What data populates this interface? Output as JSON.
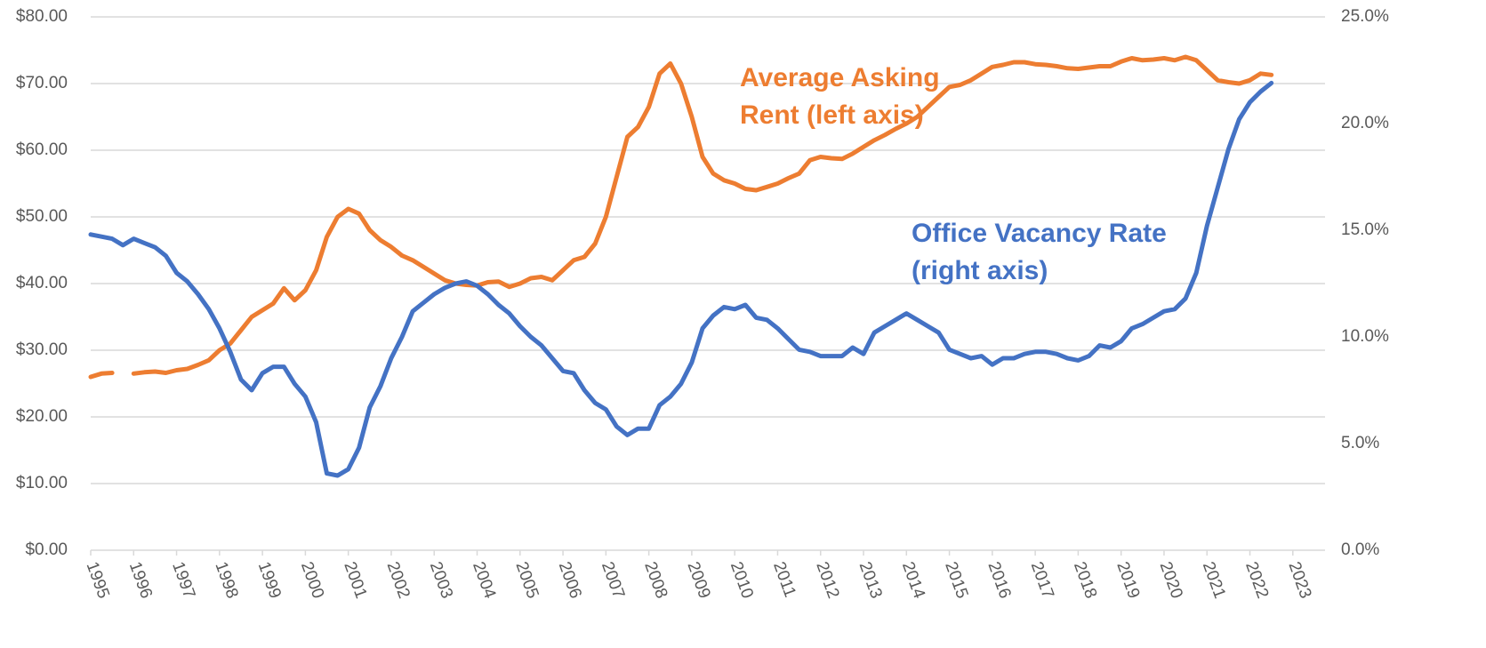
{
  "chart_data": {
    "type": "line",
    "x": [
      1995,
      1995.25,
      1995.5,
      1995.75,
      1996,
      1996.25,
      1996.5,
      1996.75,
      1997,
      1997.25,
      1997.5,
      1997.75,
      1998,
      1998.25,
      1998.5,
      1998.75,
      1999,
      1999.25,
      1999.5,
      1999.75,
      2000,
      2000.25,
      2000.5,
      2000.75,
      2001,
      2001.25,
      2001.5,
      2001.75,
      2002,
      2002.25,
      2002.5,
      2002.75,
      2003,
      2003.25,
      2003.5,
      2003.75,
      2004,
      2004.25,
      2004.5,
      2004.75,
      2005,
      2005.25,
      2005.5,
      2005.75,
      2006,
      2006.25,
      2006.5,
      2006.75,
      2007,
      2007.25,
      2007.5,
      2007.75,
      2008,
      2008.25,
      2008.5,
      2008.75,
      2009,
      2009.25,
      2009.5,
      2009.75,
      2010,
      2010.25,
      2010.5,
      2010.75,
      2011,
      2011.25,
      2011.5,
      2011.75,
      2012,
      2012.25,
      2012.5,
      2012.75,
      2013,
      2013.25,
      2013.5,
      2013.75,
      2014,
      2014.25,
      2014.5,
      2014.75,
      2015,
      2015.25,
      2015.5,
      2015.75,
      2016,
      2016.25,
      2016.5,
      2016.75,
      2017,
      2017.25,
      2017.5,
      2017.75,
      2018,
      2018.25,
      2018.5,
      2018.75,
      2019,
      2019.25,
      2019.5,
      2019.75,
      2020,
      2020.25,
      2020.5,
      2020.75,
      2021,
      2021.25,
      2021.5,
      2021.75,
      2022,
      2022.25,
      2022.5
    ],
    "series": [
      {
        "color": "#ed7d31",
        "axis": "y",
        "values": [
          26.0,
          26.5,
          26.6,
          null,
          26.5,
          26.7,
          26.8,
          26.6,
          27.0,
          27.2,
          27.8,
          28.5,
          30,
          31,
          33,
          35,
          36,
          37,
          39.3,
          37.5,
          39,
          42,
          47,
          50,
          51.2,
          50.5,
          48,
          46.5,
          45.5,
          44.2,
          43.5,
          42.5,
          41.5,
          40.5,
          40,
          39.8,
          39.7,
          40.2,
          40.3,
          39.5,
          40,
          40.8,
          41,
          40.5,
          42,
          43.5,
          44,
          46,
          50,
          56,
          62,
          63.5,
          66.5,
          71.5,
          73,
          70,
          65,
          59,
          56.5,
          55.5,
          55,
          54.2,
          54,
          54.5,
          55,
          55.8,
          56.5,
          58.5,
          59,
          58.8,
          58.7,
          59.5,
          60.5,
          61.5,
          62.3,
          63.2,
          64,
          65,
          66.5,
          68,
          69.5,
          69.8,
          70.5,
          71.5,
          72.5,
          72.8,
          73.2,
          73.2,
          72.9,
          72.8,
          72.6,
          72.3,
          72.2,
          72.4,
          72.6,
          72.6,
          73.3,
          73.8,
          73.5,
          73.6,
          73.8,
          73.5,
          74,
          73.5,
          72,
          70.5,
          70.2,
          70,
          70.5,
          71.5,
          71.3
        ]
      },
      {
        "color": "#4472c4",
        "axis": "y2",
        "values": [
          14.8,
          14.7,
          14.6,
          14.3,
          14.6,
          14.4,
          14.2,
          13.8,
          13.0,
          12.6,
          12.0,
          11.3,
          10.4,
          9.3,
          8.0,
          7.5,
          8.3,
          8.6,
          8.6,
          7.8,
          7.2,
          6.0,
          3.6,
          3.5,
          3.8,
          4.8,
          6.7,
          7.7,
          9.0,
          10.0,
          11.2,
          11.6,
          12.0,
          12.3,
          12.5,
          12.6,
          12.4,
          12.0,
          11.5,
          11.1,
          10.5,
          10.0,
          9.6,
          9.0,
          8.4,
          8.3,
          7.5,
          6.9,
          6.6,
          5.8,
          5.4,
          5.7,
          5.7,
          6.8,
          7.2,
          7.8,
          8.8,
          10.4,
          11.0,
          11.4,
          11.3,
          11.5,
          10.9,
          10.8,
          10.4,
          9.9,
          9.4,
          9.3,
          9.1,
          9.1,
          9.1,
          9.5,
          9.2,
          10.2,
          10.5,
          10.8,
          11.1,
          10.8,
          10.5,
          10.2,
          9.4,
          9.2,
          9.0,
          9.1,
          8.7,
          9.0,
          9.0,
          9.2,
          9.3,
          9.3,
          9.2,
          9.0,
          8.9,
          9.1,
          9.6,
          9.5,
          9.8,
          10.4,
          10.6,
          10.9,
          11.2,
          11.3,
          11.8,
          13.0,
          15.2,
          17.0,
          18.8,
          20.2,
          21.0,
          21.5,
          21.9
        ]
      }
    ],
    "annotations": [
      {
        "lines": [
          "Average Asking",
          "Rent (left axis)"
        ]
      },
      {
        "lines": [
          "Office Vacancy Rate",
          "(right axis)"
        ]
      }
    ],
    "xlim": [
      1995,
      2023.75
    ],
    "xticks": [
      1995,
      1996,
      1997,
      1998,
      1999,
      2000,
      2001,
      2002,
      2003,
      2004,
      2005,
      2006,
      2007,
      2008,
      2009,
      2010,
      2011,
      2012,
      2013,
      2014,
      2015,
      2016,
      2017,
      2018,
      2019,
      2020,
      2021,
      2022,
      2023
    ],
    "ylim": [
      0,
      80
    ],
    "yticks": [
      {
        "value": 0,
        "label": "$0.00"
      },
      {
        "value": 10,
        "label": "$10.00"
      },
      {
        "value": 20,
        "label": "$20.00"
      },
      {
        "value": 30,
        "label": "$30.00"
      },
      {
        "value": 40,
        "label": "$40.00"
      },
      {
        "value": 50,
        "label": "$50.00"
      },
      {
        "value": 60,
        "label": "$60.00"
      },
      {
        "value": 70,
        "label": "$70.00"
      },
      {
        "value": 80,
        "label": "$80.00"
      }
    ],
    "y2lim": [
      0,
      25
    ],
    "y2ticks": [
      {
        "value": 0,
        "label": "0.0%"
      },
      {
        "value": 5,
        "label": "5.0%"
      },
      {
        "value": 10,
        "label": "10.0%"
      },
      {
        "value": 15,
        "label": "15.0%"
      },
      {
        "value": 20,
        "label": "20.0%"
      },
      {
        "value": 25,
        "label": "25.0%"
      }
    ],
    "grid": true
  }
}
